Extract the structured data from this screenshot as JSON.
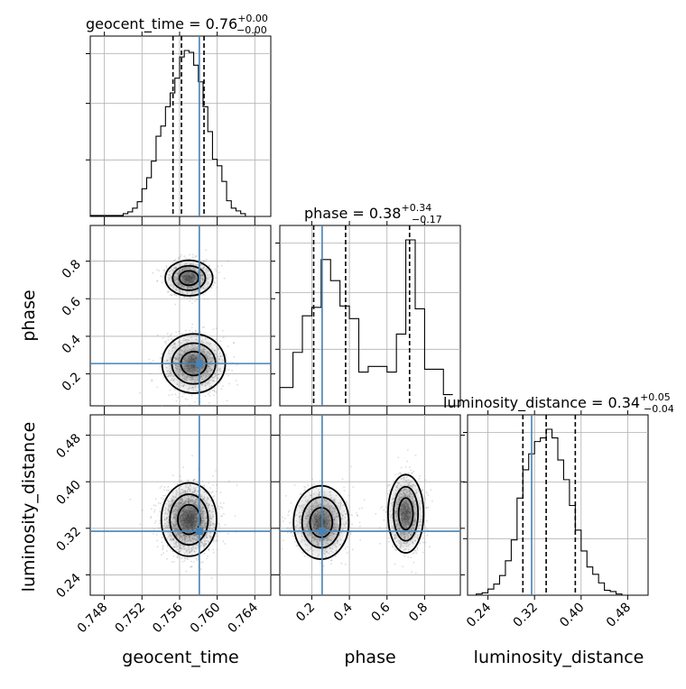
{
  "chart_data": {
    "type": "corner",
    "parameters": [
      "geocent_time",
      "phase",
      "luminosity_distance"
    ],
    "truths": {
      "geocent_time": 0.7581,
      "phase": 0.255,
      "luminosity_distance": 0.315
    },
    "quantiles": {
      "geocent_time": [
        0.7553,
        0.7562,
        0.7586
      ],
      "phase": [
        0.21,
        0.38,
        0.72
      ],
      "luminosity_distance": [
        0.3,
        0.34,
        0.39
      ]
    },
    "titles": {
      "geocent_time": {
        "label": "geocent_time = 0.76",
        "plus": "+0.00",
        "minus": "−0.00"
      },
      "phase": {
        "label": "phase = 0.38",
        "plus": "+0.34",
        "minus": "−0.17"
      },
      "luminosity_distance": {
        "label": "luminosity_distance = 0.34",
        "plus": "+0.05",
        "minus": "−0.04"
      }
    },
    "axis_labels": {
      "x": [
        "geocent_time",
        "phase",
        "luminosity_distance"
      ],
      "y": [
        "phase",
        "luminosity_distance"
      ]
    },
    "ticks": {
      "geocent_time": [
        "0.748",
        "0.752",
        "0.756",
        "0.760",
        "0.764"
      ],
      "phase": [
        "0.2",
        "0.4",
        "0.6",
        "0.8"
      ],
      "luminosity_distance": [
        "0.24",
        "0.32",
        "0.40",
        "0.48"
      ]
    },
    "ranges": {
      "geocent_time": [
        0.7465,
        0.7657
      ],
      "phase": [
        0.03,
        0.99
      ],
      "luminosity_distance": [
        0.205,
        0.515
      ]
    },
    "histograms": {
      "geocent_time": {
        "edges": [
          0.7465,
          0.75,
          0.7505,
          0.751,
          0.7515,
          0.752,
          0.7525,
          0.753,
          0.7535,
          0.754,
          0.7545,
          0.755,
          0.7555,
          0.756,
          0.7565,
          0.757,
          0.7575,
          0.758,
          0.7585,
          0.759,
          0.7595,
          0.76,
          0.7605,
          0.761,
          0.7615,
          0.762,
          0.7625,
          0.763,
          0.7635,
          0.764
        ],
        "counts": [
          1,
          3,
          5,
          9,
          16,
          30,
          42,
          60,
          87,
          98,
          119,
          134,
          150,
          173,
          180,
          178,
          164,
          146,
          119,
          92,
          62,
          55,
          38,
          17,
          9,
          6,
          3,
          0,
          0
        ]
      },
      "phase": {
        "edges": [
          0.03,
          0.1,
          0.15,
          0.2,
          0.25,
          0.3,
          0.35,
          0.4,
          0.45,
          0.5,
          0.55,
          0.6,
          0.65,
          0.7,
          0.75,
          0.8,
          0.85,
          0.9,
          0.95
        ],
        "counts": [
          13,
          38,
          64,
          70,
          104,
          89,
          71,
          62,
          24,
          28,
          28,
          24,
          51,
          118,
          69,
          26,
          26,
          8
        ]
      },
      "luminosity_distance": {
        "edges": [
          0.205,
          0.22,
          0.23,
          0.24,
          0.25,
          0.26,
          0.27,
          0.28,
          0.29,
          0.3,
          0.31,
          0.32,
          0.33,
          0.34,
          0.35,
          0.36,
          0.37,
          0.38,
          0.39,
          0.4,
          0.41,
          0.42,
          0.43,
          0.44,
          0.45,
          0.46,
          0.47,
          0.48,
          0.49,
          0.5
        ],
        "counts": [
          0,
          1,
          2,
          5,
          9,
          16,
          28,
          45,
          79,
          102,
          115,
          125,
          128,
          135,
          128,
          110,
          94,
          73,
          53,
          36,
          23,
          17,
          10,
          4,
          3,
          1,
          0,
          0,
          0,
          0
        ]
      }
    },
    "modes_2d": {
      "phase_vs_geocent_time": [
        [
          0.757,
          0.71
        ],
        [
          0.7575,
          0.255
        ]
      ],
      "luminosity_distance_vs_geocent_time": [
        [
          0.757,
          0.335
        ]
      ],
      "luminosity_distance_vs_phase": [
        [
          0.25,
          0.33
        ],
        [
          0.7,
          0.345
        ]
      ]
    },
    "grid": true
  }
}
